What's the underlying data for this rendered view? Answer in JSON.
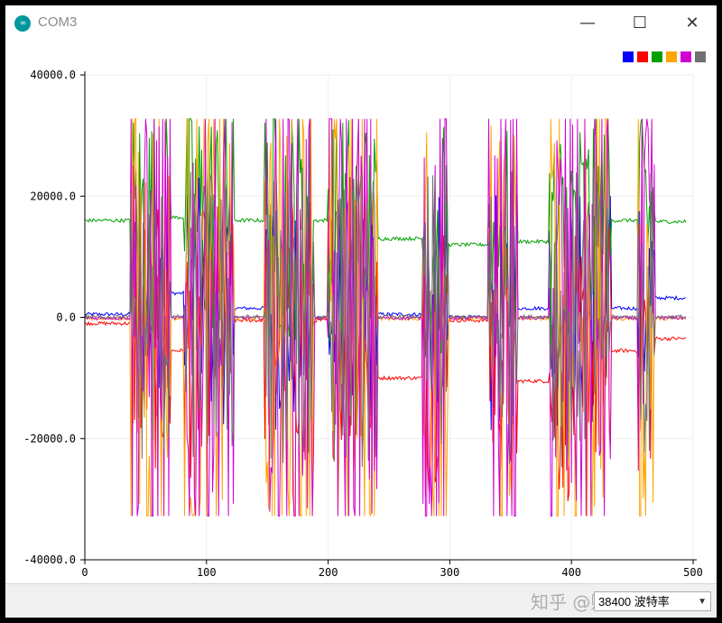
{
  "window": {
    "title": "COM3",
    "icon": "arduino-icon",
    "controls": {
      "minimize": "—",
      "maximize": "☐",
      "close": "✕"
    }
  },
  "plotter": {
    "baud_rate": "38400 波特率",
    "watermark": "知乎 @赚给学编程"
  },
  "chart_data": {
    "type": "line",
    "xlim": [
      0,
      500
    ],
    "ylim": [
      -40000,
      40000
    ],
    "x_ticks": [
      "0",
      "100",
      "200",
      "300",
      "400",
      "500"
    ],
    "y_ticks": [
      "40000.0",
      "20000.0",
      "0.0",
      "-20000.0",
      "-40000.0"
    ],
    "y_tick_values": [
      40000,
      20000,
      0,
      -20000,
      -40000
    ],
    "x_tick_values": [
      0,
      100,
      200,
      300,
      400,
      500
    ],
    "grid": true,
    "legend_position": "top-right",
    "clip": [
      -32768,
      32767
    ],
    "bursts": [
      [
        38,
        70
      ],
      [
        82,
        122
      ],
      [
        148,
        188
      ],
      [
        200,
        240
      ],
      [
        278,
        298
      ],
      [
        332,
        355
      ],
      [
        382,
        432
      ],
      [
        455,
        468
      ]
    ],
    "series": [
      {
        "color": "#0000ff",
        "baseline": [
          [
            0,
            500
          ],
          [
            38,
            500
          ],
          [
            70,
            4000
          ],
          [
            82,
            4000
          ],
          [
            122,
            1500
          ],
          [
            148,
            1500
          ],
          [
            188,
            0
          ],
          [
            200,
            0
          ],
          [
            240,
            500
          ],
          [
            278,
            500
          ],
          [
            298,
            0
          ],
          [
            332,
            0
          ],
          [
            355,
            1500
          ],
          [
            382,
            1500
          ],
          [
            432,
            1500
          ],
          [
            455,
            1500
          ],
          [
            468,
            3200
          ],
          [
            500,
            3200
          ]
        ]
      },
      {
        "color": "#ff0000",
        "baseline": [
          [
            0,
            -1000
          ],
          [
            38,
            -1000
          ],
          [
            70,
            -5500
          ],
          [
            82,
            -5500
          ],
          [
            122,
            -500
          ],
          [
            148,
            -500
          ],
          [
            188,
            -500
          ],
          [
            200,
            -500
          ],
          [
            240,
            -10000
          ],
          [
            278,
            -10000
          ],
          [
            298,
            -500
          ],
          [
            332,
            -500
          ],
          [
            355,
            -10500
          ],
          [
            382,
            -10500
          ],
          [
            432,
            -5500
          ],
          [
            455,
            -5500
          ],
          [
            468,
            -3500
          ],
          [
            500,
            -3500
          ]
        ]
      },
      {
        "color": "#00a000",
        "baseline": [
          [
            0,
            16000
          ],
          [
            38,
            16000
          ],
          [
            70,
            16500
          ],
          [
            82,
            16500
          ],
          [
            122,
            16000
          ],
          [
            148,
            16000
          ],
          [
            188,
            16000
          ],
          [
            200,
            16000
          ],
          [
            240,
            13000
          ],
          [
            278,
            13000
          ],
          [
            298,
            12000
          ],
          [
            332,
            12000
          ],
          [
            355,
            12500
          ],
          [
            382,
            12500
          ],
          [
            432,
            16000
          ],
          [
            455,
            16000
          ],
          [
            468,
            15800
          ],
          [
            500,
            15800
          ]
        ]
      },
      {
        "color": "#ffa500",
        "baseline": [
          [
            0,
            -200
          ],
          [
            38,
            -200
          ],
          [
            70,
            -200
          ],
          [
            82,
            -200
          ],
          [
            122,
            -200
          ],
          [
            148,
            -200
          ],
          [
            188,
            -200
          ],
          [
            200,
            -200
          ],
          [
            240,
            -200
          ],
          [
            278,
            -200
          ],
          [
            298,
            -200
          ],
          [
            332,
            -200
          ],
          [
            355,
            -200
          ],
          [
            382,
            -200
          ],
          [
            432,
            -200
          ],
          [
            455,
            -200
          ],
          [
            468,
            -200
          ],
          [
            500,
            -200
          ]
        ]
      },
      {
        "color": "#d000d0",
        "baseline": [
          [
            0,
            -100
          ],
          [
            38,
            -100
          ],
          [
            70,
            -100
          ],
          [
            82,
            -100
          ],
          [
            122,
            -100
          ],
          [
            148,
            -100
          ],
          [
            188,
            -100
          ],
          [
            200,
            -100
          ],
          [
            240,
            -100
          ],
          [
            278,
            -100
          ],
          [
            298,
            -100
          ],
          [
            332,
            -100
          ],
          [
            355,
            -100
          ],
          [
            382,
            -100
          ],
          [
            432,
            -100
          ],
          [
            455,
            -100
          ],
          [
            468,
            -100
          ],
          [
            500,
            -100
          ]
        ]
      },
      {
        "color": "#707070",
        "baseline": [
          [
            0,
            100
          ],
          [
            38,
            100
          ],
          [
            70,
            100
          ],
          [
            82,
            100
          ],
          [
            122,
            100
          ],
          [
            148,
            100
          ],
          [
            188,
            100
          ],
          [
            200,
            100
          ],
          [
            240,
            100
          ],
          [
            278,
            100
          ],
          [
            298,
            100
          ],
          [
            332,
            100
          ],
          [
            355,
            100
          ],
          [
            382,
            100
          ],
          [
            432,
            100
          ],
          [
            455,
            100
          ],
          [
            468,
            100
          ],
          [
            500,
            100
          ]
        ]
      }
    ]
  }
}
